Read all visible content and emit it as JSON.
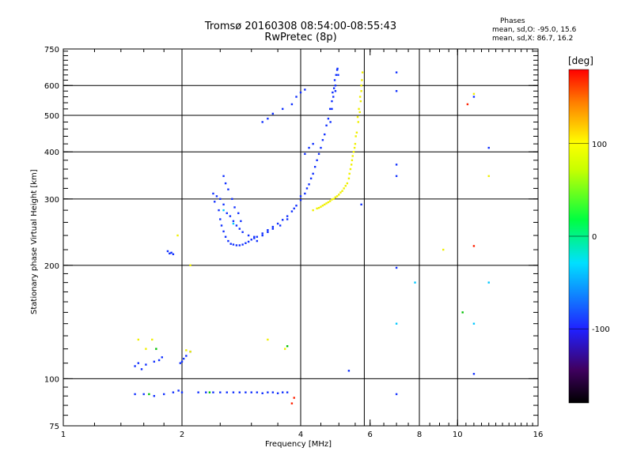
{
  "header": {
    "title_line1": "Tromsø 20160308 08:54:00-08:55:43",
    "title_line2": "RwPretec (8p)"
  },
  "stats": {
    "title": "Phases",
    "line_o": "mean, sd,O: -95.0, 15.6",
    "line_x": "mean, sd,X:  86.7, 16.2"
  },
  "colorbar": {
    "title": "[deg]",
    "ticks": [
      {
        "value": 100,
        "label": "100"
      },
      {
        "value": 0,
        "label": "0"
      },
      {
        "value": -100,
        "label": "-100"
      }
    ],
    "range": [
      -180,
      180
    ]
  },
  "chart_data": {
    "type": "scatter",
    "title": "Tromsø 20160308 08:54:00-08:55:43",
    "subtitle": "RwPretec (8p)",
    "xlabel": "Frequency [MHz]",
    "ylabel": "Stationary phase Virtual Height [km]",
    "x_scale": "log",
    "y_scale": "log",
    "xlim": [
      1,
      16
    ],
    "ylim": [
      75,
      750
    ],
    "x_ticks": [
      1,
      2,
      4,
      6,
      8,
      10,
      16
    ],
    "x_tick_labels": [
      "1",
      "2",
      "4",
      "6",
      "8",
      "10",
      "16"
    ],
    "y_ticks": [
      75,
      100,
      200,
      300,
      400,
      500,
      600,
      750
    ],
    "y_tick_labels": [
      "75",
      "100",
      "200",
      "300",
      "400",
      "500",
      "600",
      "750"
    ],
    "grid_x": [
      2,
      4,
      5.8,
      8,
      10
    ],
    "grid_y": [
      100,
      200,
      300,
      400,
      500,
      600
    ],
    "colorbar_range_deg": [
      -180,
      180
    ],
    "series": [
      {
        "name": "O",
        "color": "#1030ff",
        "phase_deg": -95.0,
        "points": [
          [
            1.52,
            108
          ],
          [
            1.55,
            110
          ],
          [
            1.58,
            106
          ],
          [
            1.62,
            109
          ],
          [
            1.7,
            111
          ],
          [
            1.75,
            112
          ],
          [
            1.78,
            114
          ],
          [
            1.84,
            218
          ],
          [
            1.86,
            215
          ],
          [
            1.88,
            216
          ],
          [
            1.9,
            214
          ],
          [
            1.98,
            110
          ],
          [
            2.0,
            111
          ],
          [
            2.02,
            113
          ],
          [
            2.05,
            115
          ],
          [
            2.1,
            118
          ],
          [
            1.52,
            91
          ],
          [
            1.6,
            91
          ],
          [
            1.7,
            90
          ],
          [
            1.8,
            91
          ],
          [
            1.9,
            92
          ],
          [
            1.96,
            93
          ],
          [
            2.0,
            92
          ],
          [
            2.2,
            92
          ],
          [
            2.3,
            92
          ],
          [
            2.4,
            92
          ],
          [
            2.5,
            92
          ],
          [
            2.6,
            92
          ],
          [
            2.7,
            92
          ],
          [
            2.8,
            92
          ],
          [
            2.9,
            92
          ],
          [
            3.0,
            92
          ],
          [
            3.1,
            92
          ],
          [
            3.2,
            91.5
          ],
          [
            3.3,
            92
          ],
          [
            3.4,
            92
          ],
          [
            3.5,
            91.5
          ],
          [
            3.6,
            92
          ],
          [
            3.7,
            92
          ],
          [
            2.45,
            305
          ],
          [
            2.48,
            280
          ],
          [
            2.5,
            265
          ],
          [
            2.52,
            255
          ],
          [
            2.55,
            246
          ],
          [
            2.58,
            238
          ],
          [
            2.62,
            232
          ],
          [
            2.66,
            228
          ],
          [
            2.7,
            227
          ],
          [
            2.75,
            226
          ],
          [
            2.8,
            226
          ],
          [
            2.85,
            227
          ],
          [
            2.9,
            229
          ],
          [
            2.95,
            231
          ],
          [
            3.0,
            234
          ],
          [
            3.05,
            236
          ],
          [
            3.1,
            238
          ],
          [
            3.2,
            243
          ],
          [
            3.3,
            248
          ],
          [
            3.4,
            253
          ],
          [
            3.5,
            258
          ],
          [
            3.6,
            264
          ],
          [
            3.7,
            270
          ],
          [
            3.8,
            278
          ],
          [
            3.9,
            288
          ],
          [
            4.0,
            298
          ],
          [
            4.1,
            310
          ],
          [
            4.2,
            328
          ],
          [
            4.3,
            350
          ],
          [
            4.4,
            380
          ],
          [
            4.5,
            410
          ],
          [
            4.6,
            445
          ],
          [
            4.7,
            490
          ],
          [
            4.8,
            545
          ],
          [
            4.86,
            590
          ],
          [
            4.92,
            640
          ],
          [
            4.96,
            665
          ],
          [
            4.9,
            600
          ],
          [
            4.84,
            560
          ],
          [
            4.8,
            520
          ],
          [
            4.76,
            480
          ],
          [
            2.4,
            310
          ],
          [
            2.42,
            295
          ],
          [
            2.5,
            300
          ],
          [
            2.55,
            290
          ],
          [
            2.6,
            275
          ],
          [
            2.65,
            270
          ],
          [
            2.7,
            262
          ],
          [
            2.75,
            255
          ],
          [
            2.8,
            250
          ],
          [
            2.85,
            245
          ],
          [
            2.95,
            240
          ],
          [
            3.05,
            238
          ],
          [
            3.1,
            232
          ],
          [
            3.2,
            240
          ],
          [
            3.3,
            245
          ],
          [
            3.4,
            250
          ],
          [
            3.55,
            255
          ],
          [
            3.7,
            265
          ],
          [
            3.85,
            283
          ],
          [
            4.0,
            305
          ],
          [
            4.15,
            320
          ],
          [
            4.25,
            340
          ],
          [
            4.35,
            365
          ],
          [
            4.45,
            395
          ],
          [
            4.55,
            430
          ],
          [
            4.65,
            470
          ],
          [
            4.75,
            520
          ],
          [
            4.82,
            575
          ],
          [
            4.88,
            620
          ],
          [
            4.95,
            660
          ],
          [
            4.98,
            640
          ],
          [
            4.9,
            580
          ],
          [
            2.55,
            345
          ],
          [
            2.58,
            330
          ],
          [
            2.62,
            318
          ],
          [
            2.68,
            300
          ],
          [
            2.72,
            285
          ],
          [
            2.78,
            275
          ],
          [
            2.82,
            262
          ],
          [
            3.2,
            480
          ],
          [
            3.3,
            490
          ],
          [
            3.4,
            505
          ],
          [
            3.6,
            520
          ],
          [
            3.8,
            535
          ],
          [
            3.9,
            560
          ],
          [
            4.0,
            575
          ],
          [
            4.1,
            585
          ],
          [
            4.3,
            420
          ],
          [
            4.2,
            410
          ],
          [
            4.1,
            395
          ],
          [
            5.7,
            290
          ],
          [
            7.0,
            650
          ],
          [
            7.0,
            580
          ],
          [
            7.0,
            370
          ],
          [
            7.0,
            345
          ],
          [
            7.0,
            197
          ],
          [
            7.0,
            91
          ],
          [
            5.3,
            105
          ],
          [
            11.0,
            560
          ],
          [
            12.0,
            410
          ],
          [
            11.0,
            103
          ]
        ]
      },
      {
        "name": "X",
        "color": "#f0f000",
        "phase_deg": 86.7,
        "points": [
          [
            4.3,
            280
          ],
          [
            4.4,
            283
          ],
          [
            4.5,
            286
          ],
          [
            4.6,
            290
          ],
          [
            4.7,
            294
          ],
          [
            4.8,
            299
          ],
          [
            4.9,
            303
          ],
          [
            5.0,
            308
          ],
          [
            5.1,
            315
          ],
          [
            5.2,
            325
          ],
          [
            5.3,
            340
          ],
          [
            5.35,
            360
          ],
          [
            5.4,
            380
          ],
          [
            5.45,
            400
          ],
          [
            5.5,
            420
          ],
          [
            5.55,
            450
          ],
          [
            5.6,
            480
          ],
          [
            5.65,
            510
          ],
          [
            5.68,
            545
          ],
          [
            5.7,
            580
          ],
          [
            5.72,
            620
          ],
          [
            5.74,
            650
          ],
          [
            5.7,
            600
          ],
          [
            5.66,
            560
          ],
          [
            5.62,
            520
          ],
          [
            5.58,
            495
          ],
          [
            5.52,
            440
          ],
          [
            5.48,
            410
          ],
          [
            5.42,
            390
          ],
          [
            5.38,
            370
          ],
          [
            5.32,
            350
          ],
          [
            5.25,
            330
          ],
          [
            5.15,
            320
          ],
          [
            5.05,
            312
          ],
          [
            4.95,
            305
          ],
          [
            4.85,
            300
          ],
          [
            4.75,
            296
          ],
          [
            4.65,
            292
          ],
          [
            4.55,
            288
          ],
          [
            4.45,
            284
          ],
          [
            1.55,
            127
          ],
          [
            1.68,
            127
          ],
          [
            1.62,
            120
          ],
          [
            2.1,
            118
          ],
          [
            2.05,
            119
          ],
          [
            3.3,
            127
          ],
          [
            3.65,
            120
          ],
          [
            1.95,
            240
          ],
          [
            2.1,
            200
          ],
          [
            9.2,
            220
          ],
          [
            12.0,
            345
          ],
          [
            11.0,
            570
          ]
        ]
      },
      {
        "name": "other",
        "color": "#00c000",
        "points": [
          [
            3.7,
            122
          ],
          [
            1.72,
            120
          ],
          [
            2.35,
            92
          ],
          [
            1.65,
            91
          ],
          [
            10.3,
            150
          ]
        ]
      },
      {
        "name": "other-red",
        "color": "#ff2000",
        "points": [
          [
            10.6,
            535
          ],
          [
            11.0,
            225
          ],
          [
            3.8,
            86
          ],
          [
            3.85,
            89
          ]
        ]
      },
      {
        "name": "other-cyan",
        "color": "#00c8ff",
        "points": [
          [
            7.0,
            140
          ],
          [
            7.8,
            180
          ],
          [
            12.0,
            180
          ],
          [
            11.0,
            140
          ],
          [
            2.55,
            280
          ],
          [
            2.7,
            258
          ]
        ]
      }
    ]
  }
}
